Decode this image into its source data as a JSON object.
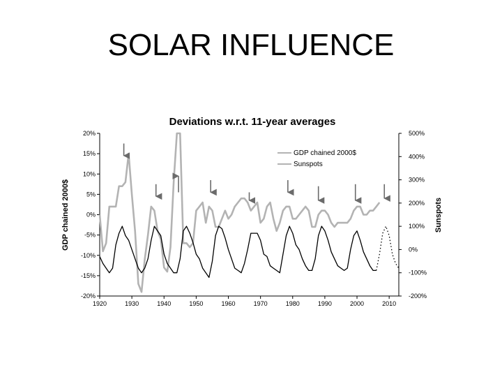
{
  "slide": {
    "title": "SOLAR INFLUENCE"
  },
  "chart_data": {
    "type": "line",
    "title": "Deviations w.r.t. 11-year averages",
    "xlabel": "",
    "ylabel": "GDP chained 2000$",
    "y2label": "Sunspots",
    "xlim": [
      1920,
      2013
    ],
    "ylim": [
      -20,
      20
    ],
    "y2lim": [
      -200,
      500
    ],
    "x_ticks": [
      1920,
      1930,
      1940,
      1950,
      1960,
      1970,
      1980,
      1990,
      2000,
      2010
    ],
    "x_tick_labels": [
      "1920",
      "1930",
      "1940",
      "1950",
      "1960",
      "1970",
      "1980",
      "1990",
      "2000",
      "2010"
    ],
    "y_ticks": [
      20,
      15,
      10,
      5,
      0,
      -5,
      -10,
      -15,
      -20
    ],
    "y_tick_labels": [
      "20%",
      "15%",
      "10%",
      "5%",
      "0%",
      "-5%",
      "-10%",
      "-15%",
      "-20%"
    ],
    "y2_ticks": [
      500,
      400,
      300,
      200,
      100,
      0,
      -100,
      -200
    ],
    "y2_tick_labels": [
      "500%",
      "400%",
      "300%",
      "200%",
      "100%",
      "0%",
      "-100%",
      "-200%"
    ],
    "grid": false,
    "legend_position": "top-right",
    "series": [
      {
        "name": "GDP chained 2000$",
        "axis": "left",
        "color": "#b3b3b3",
        "x": [
          1920,
          1921,
          1922,
          1923,
          1924,
          1925,
          1926,
          1927,
          1928,
          1929,
          1930,
          1931,
          1932,
          1933,
          1934,
          1935,
          1936,
          1937,
          1938,
          1939,
          1940,
          1941,
          1942,
          1943,
          1944,
          1945,
          1946,
          1947,
          1948,
          1949,
          1950,
          1951,
          1952,
          1953,
          1954,
          1955,
          1956,
          1957,
          1958,
          1959,
          1960,
          1961,
          1962,
          1963,
          1964,
          1965,
          1966,
          1967,
          1968,
          1969,
          1970,
          1971,
          1972,
          1973,
          1974,
          1975,
          1976,
          1977,
          1978,
          1979,
          1980,
          1981,
          1982,
          1983,
          1984,
          1985,
          1986,
          1987,
          1988,
          1989,
          1990,
          1991,
          1992,
          1993,
          1994,
          1995,
          1996,
          1997,
          1998,
          1999,
          2000,
          2001,
          2002,
          2003,
          2004,
          2005,
          2006,
          2007
        ],
        "y": [
          0,
          -9,
          -7,
          2,
          2,
          2,
          7,
          7,
          8,
          15,
          5,
          -4,
          -17,
          -19,
          -11,
          -5,
          2,
          1,
          -4,
          -6,
          -13,
          -14,
          -8,
          8,
          20,
          20,
          -7,
          -7,
          -8,
          -7,
          1,
          2,
          3,
          -2,
          2,
          1,
          -3,
          -3,
          -1,
          1,
          -1,
          0,
          2,
          3,
          4,
          4,
          3,
          1,
          2,
          3,
          -2,
          -1,
          2,
          3,
          -1,
          -4,
          -2,
          1,
          2,
          2,
          -1,
          -1,
          0,
          1,
          2,
          1,
          -3,
          -3,
          0,
          1,
          1,
          0,
          -2,
          -3,
          -2,
          -2,
          -2,
          -2,
          -1,
          1,
          2,
          2,
          0,
          0,
          1,
          1,
          2,
          3
        ]
      },
      {
        "name": "Sunspots",
        "axis": "right",
        "color": "#000000",
        "x": [
          1920,
          1921,
          1922,
          1923,
          1924,
          1925,
          1926,
          1927,
          1928,
          1929,
          1930,
          1931,
          1932,
          1933,
          1934,
          1935,
          1936,
          1937,
          1938,
          1939,
          1940,
          1941,
          1942,
          1943,
          1944,
          1945,
          1946,
          1947,
          1948,
          1949,
          1950,
          1951,
          1952,
          1953,
          1954,
          1955,
          1956,
          1957,
          1958,
          1959,
          1960,
          1961,
          1962,
          1963,
          1964,
          1965,
          1966,
          1967,
          1968,
          1969,
          1970,
          1971,
          1972,
          1973,
          1974,
          1975,
          1976,
          1977,
          1978,
          1979,
          1980,
          1981,
          1982,
          1983,
          1984,
          1985,
          1986,
          1987,
          1988,
          1989,
          1990,
          1991,
          1992,
          1993,
          1994,
          1995,
          1996,
          1997,
          1998,
          1999,
          2000,
          2001,
          2002,
          2003,
          2004,
          2005,
          2006
        ],
        "y": [
          -30,
          -60,
          -80,
          -100,
          -80,
          20,
          70,
          100,
          60,
          40,
          0,
          -40,
          -80,
          -100,
          -80,
          -40,
          40,
          100,
          80,
          60,
          -20,
          -60,
          -80,
          -100,
          -100,
          -40,
          80,
          100,
          70,
          30,
          -20,
          -40,
          -80,
          -100,
          -120,
          -50,
          60,
          100,
          90,
          50,
          0,
          -40,
          -80,
          -90,
          -100,
          -60,
          0,
          70,
          70,
          70,
          40,
          -20,
          -30,
          -70,
          -80,
          -90,
          -100,
          -20,
          60,
          100,
          70,
          20,
          0,
          -40,
          -70,
          -90,
          -90,
          -40,
          60,
          100,
          80,
          40,
          -10,
          -40,
          -70,
          -80,
          -90,
          -80,
          0,
          60,
          80,
          40,
          -10,
          -40,
          -70,
          -90,
          -90
        ]
      },
      {
        "name": "",
        "axis": "right",
        "color": "#000000",
        "style": "dotted",
        "x": [
          2006,
          2007,
          2008,
          2009,
          2010,
          2011,
          2012,
          2013
        ],
        "y": [
          -90,
          -20,
          70,
          100,
          60,
          -20,
          -60,
          -80
        ]
      }
    ],
    "annotations": [
      {
        "type": "arrow-down",
        "x": 1927.5,
        "y_from": 17.5,
        "y_to": 14.5
      },
      {
        "type": "arrow-down",
        "x": 1937.5,
        "y_from": 7.5,
        "y_to": 4.5
      },
      {
        "type": "arrow-up",
        "x": 1944.5,
        "y_from": 5.5,
        "y_to": 9.5
      },
      {
        "type": "arrow-down",
        "x": 1954.5,
        "y_from": 8.5,
        "y_to": 5.5
      },
      {
        "type": "arrow-down",
        "x": 1966.5,
        "y_from": 5.5,
        "y_to": 3.5
      },
      {
        "type": "arrow-down",
        "x": 1978.5,
        "y_from": 8.5,
        "y_to": 5.5
      },
      {
        "type": "arrow-down",
        "x": 1988,
        "y_from": 7.0,
        "y_to": 3.5
      },
      {
        "type": "arrow-down",
        "x": 1999.5,
        "y_from": 7.5,
        "y_to": 3.5
      },
      {
        "type": "arrow-down",
        "x": 2008.5,
        "y_from": 7.5,
        "y_to": 4.0
      }
    ]
  }
}
